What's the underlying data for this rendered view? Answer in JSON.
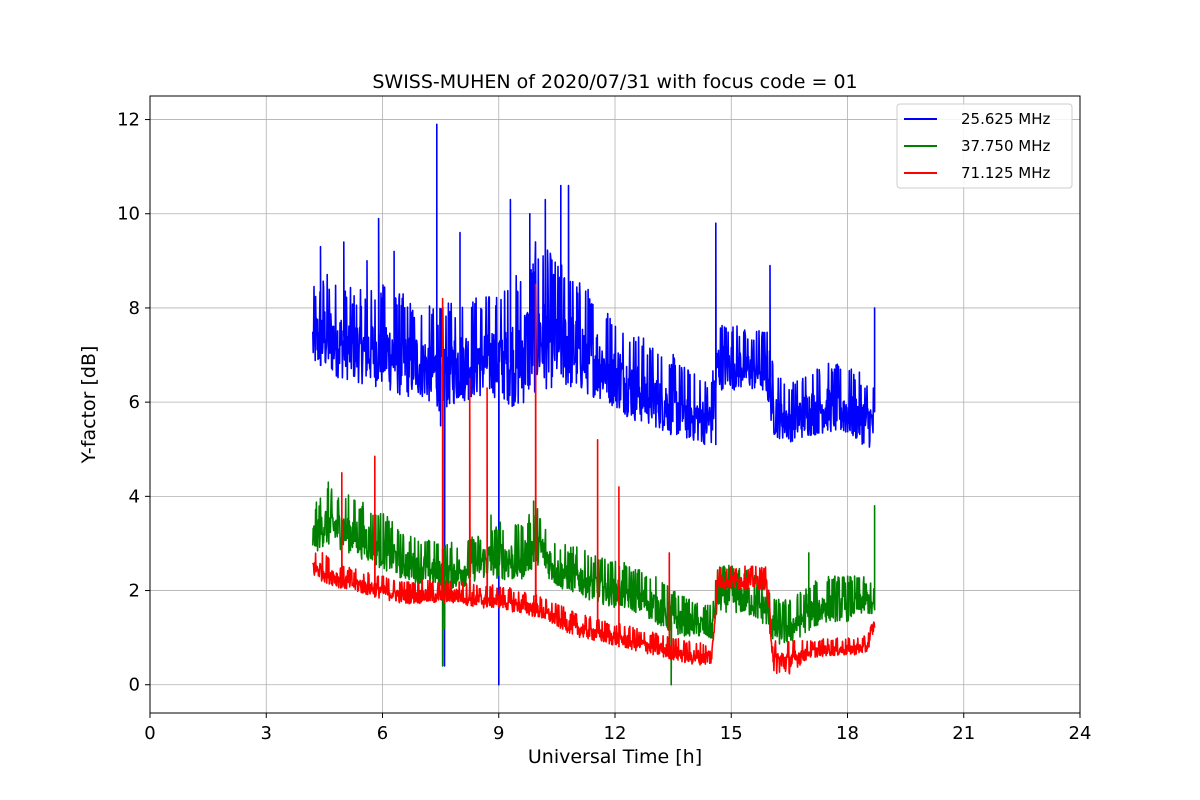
{
  "chart_data": {
    "type": "line",
    "title": "SWISS-MUHEN of 2020/07/31 with focus code = 01",
    "xlabel": "Universal Time [h]",
    "ylabel": "Y-factor [dB]",
    "xlim": [
      0,
      24
    ],
    "ylim": [
      -0.6,
      12.5
    ],
    "xticks": [
      0,
      3,
      6,
      9,
      12,
      15,
      18,
      21,
      24
    ],
    "yticks": [
      0,
      2,
      4,
      6,
      8,
      10,
      12
    ],
    "grid": true,
    "legend_position": "top-right",
    "series": [
      {
        "name": "25.625 MHz",
        "color": "#0000ff",
        "x": [
          4.2,
          4.5,
          5.0,
          5.5,
          6.0,
          6.5,
          7.0,
          7.5,
          8.0,
          8.5,
          9.0,
          9.5,
          10.0,
          10.5,
          11.0,
          11.5,
          12.0,
          12.5,
          13.0,
          13.5,
          14.0,
          14.5,
          14.65,
          15.0,
          15.5,
          15.9,
          16.1,
          16.5,
          17.0,
          17.5,
          18.0,
          18.5,
          18.7
        ],
        "y": [
          7.3,
          7.4,
          7.2,
          7.1,
          7.1,
          6.9,
          6.8,
          6.6,
          6.8,
          6.9,
          6.9,
          6.9,
          7.4,
          7.3,
          7.1,
          6.9,
          6.6,
          6.3,
          6.1,
          5.9,
          5.7,
          5.6,
          6.8,
          6.8,
          6.7,
          6.7,
          5.8,
          5.6,
          5.8,
          5.9,
          5.8,
          5.6,
          5.5
        ],
        "amplitude": [
          0.7,
          0.9,
          0.8,
          0.8,
          0.9,
          0.9,
          0.8,
          0.9,
          0.9,
          0.9,
          0.9,
          1.2,
          1.3,
          1.1,
          1.0,
          0.9,
          0.8,
          0.8,
          0.7,
          0.7,
          0.6,
          0.6,
          0.6,
          0.6,
          0.5,
          0.6,
          0.6,
          0.5,
          0.6,
          0.6,
          0.6,
          0.6,
          0.6
        ],
        "spikes": [
          [
            4.4,
            9.3
          ],
          [
            5.0,
            9.4
          ],
          [
            5.6,
            9.0
          ],
          [
            5.9,
            9.9
          ],
          [
            6.3,
            9.2
          ],
          [
            7.4,
            11.9
          ],
          [
            7.5,
            5.5
          ],
          [
            7.6,
            0.4
          ],
          [
            8.0,
            9.6
          ],
          [
            9.0,
            0.0
          ],
          [
            9.1,
            6.2
          ],
          [
            9.3,
            10.3
          ],
          [
            9.8,
            10.0
          ],
          [
            10.2,
            10.3
          ],
          [
            10.6,
            10.6
          ],
          [
            10.8,
            10.6
          ],
          [
            14.6,
            9.8
          ],
          [
            14.6,
            5.1
          ],
          [
            16.0,
            8.9
          ],
          [
            18.7,
            8.0
          ]
        ]
      },
      {
        "name": "37.750 MHz",
        "color": "#008000",
        "x": [
          4.2,
          4.5,
          5.0,
          5.5,
          6.0,
          6.5,
          7.0,
          7.5,
          8.0,
          8.5,
          9.0,
          9.5,
          10.0,
          10.5,
          11.0,
          11.5,
          12.0,
          12.5,
          13.0,
          13.5,
          14.0,
          14.5,
          14.65,
          15.0,
          15.5,
          15.9,
          16.1,
          16.5,
          17.0,
          17.5,
          18.0,
          18.5,
          18.7
        ],
        "y": [
          3.1,
          3.4,
          3.3,
          3.1,
          2.9,
          2.6,
          2.5,
          2.4,
          2.4,
          2.6,
          2.7,
          2.6,
          3.0,
          2.4,
          2.3,
          2.1,
          2.0,
          1.9,
          1.7,
          1.4,
          1.3,
          1.2,
          1.9,
          1.9,
          1.8,
          1.6,
          1.2,
          1.2,
          1.5,
          1.7,
          1.7,
          1.8,
          1.6
        ],
        "amplitude": [
          0.4,
          0.5,
          0.5,
          0.5,
          0.5,
          0.4,
          0.4,
          0.4,
          0.4,
          0.4,
          0.5,
          0.5,
          0.5,
          0.4,
          0.4,
          0.4,
          0.4,
          0.4,
          0.4,
          0.4,
          0.3,
          0.3,
          0.4,
          0.4,
          0.4,
          0.4,
          0.4,
          0.4,
          0.4,
          0.4,
          0.4,
          0.3,
          0.3
        ],
        "spikes": [
          [
            4.6,
            4.3
          ],
          [
            7.55,
            0.4
          ],
          [
            7.6,
            1.2
          ],
          [
            8.8,
            3.6
          ],
          [
            9.9,
            3.9
          ],
          [
            13.45,
            0.0
          ],
          [
            17.0,
            2.8
          ],
          [
            18.7,
            3.8
          ]
        ]
      },
      {
        "name": "71.125 MHz",
        "color": "#ff0000",
        "x": [
          4.2,
          4.5,
          5.0,
          5.5,
          6.0,
          6.5,
          7.0,
          7.5,
          8.0,
          8.5,
          9.0,
          9.5,
          10.0,
          10.5,
          11.0,
          11.5,
          12.0,
          12.5,
          13.0,
          13.5,
          14.0,
          14.5,
          14.65,
          15.0,
          15.5,
          15.9,
          16.1,
          16.5,
          17.0,
          17.5,
          18.0,
          18.5,
          18.7
        ],
        "y": [
          2.5,
          2.4,
          2.2,
          2.1,
          2.0,
          1.9,
          1.9,
          1.9,
          1.9,
          1.8,
          1.8,
          1.7,
          1.6,
          1.4,
          1.2,
          1.1,
          1.0,
          0.9,
          0.8,
          0.7,
          0.6,
          0.6,
          2.2,
          2.2,
          2.2,
          2.2,
          0.5,
          0.5,
          0.7,
          0.75,
          0.75,
          0.8,
          1.3
        ],
        "amplitude": [
          0.25,
          0.25,
          0.2,
          0.2,
          0.2,
          0.2,
          0.2,
          0.2,
          0.2,
          0.2,
          0.2,
          0.2,
          0.2,
          0.2,
          0.2,
          0.2,
          0.2,
          0.2,
          0.2,
          0.2,
          0.2,
          0.2,
          0.2,
          0.2,
          0.2,
          0.2,
          0.3,
          0.3,
          0.15,
          0.15,
          0.15,
          0.15,
          0.15
        ],
        "spikes": [
          [
            4.95,
            4.5
          ],
          [
            5.8,
            4.85
          ],
          [
            7.55,
            8.2
          ],
          [
            8.25,
            6.5
          ],
          [
            8.7,
            6.3
          ],
          [
            9.95,
            8.5
          ],
          [
            11.55,
            5.2
          ],
          [
            12.1,
            4.2
          ],
          [
            13.4,
            2.8
          ]
        ]
      }
    ]
  }
}
